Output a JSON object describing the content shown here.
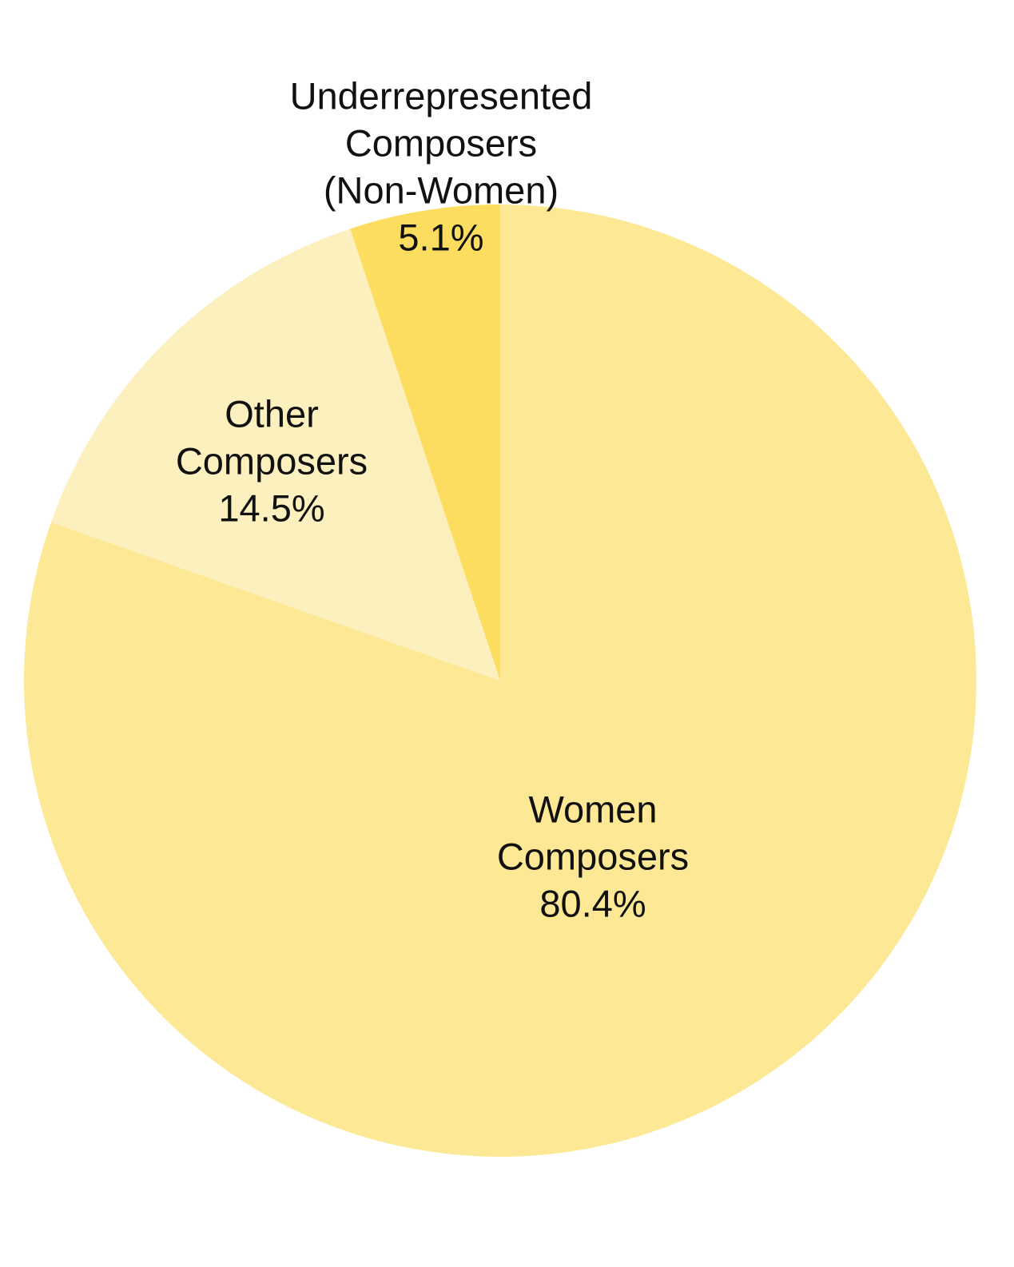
{
  "chart_data": {
    "type": "pie",
    "categories": [
      [
        "Women",
        "Composers"
      ],
      [
        "Other",
        "Composers"
      ],
      [
        "Underrepresented",
        "Composers",
        "(Non-Women)"
      ]
    ],
    "values": [
      80.4,
      14.5,
      5.1
    ],
    "value_labels": [
      "80.4%",
      "14.5%",
      "5.1%"
    ],
    "colors": [
      "#fde995",
      "#fdf0bf",
      "#fddd5f"
    ]
  }
}
